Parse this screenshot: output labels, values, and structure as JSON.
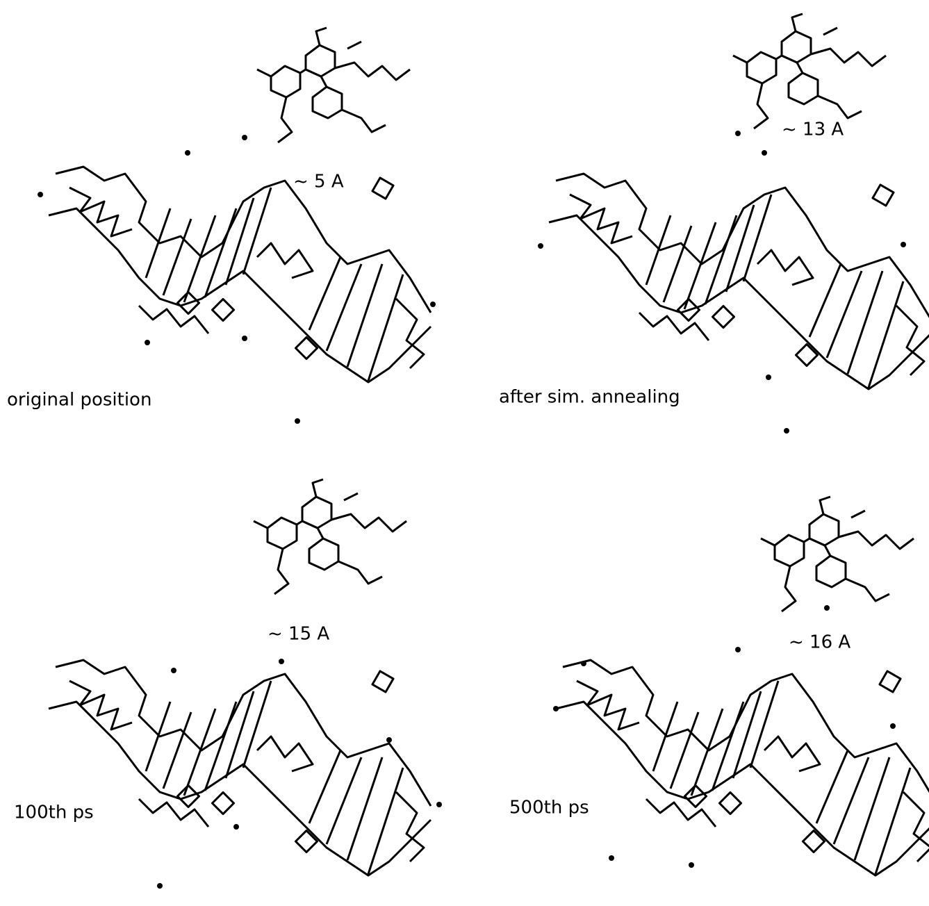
{
  "panels": [
    {
      "label": "original position",
      "distance": "~ 5 A"
    },
    {
      "label": "after sim. annealing",
      "distance": "~ 13 A"
    },
    {
      "label": "100th ps",
      "distance": "~ 15 A"
    },
    {
      "label": "500th ps",
      "distance": "~ 16 A"
    }
  ]
}
